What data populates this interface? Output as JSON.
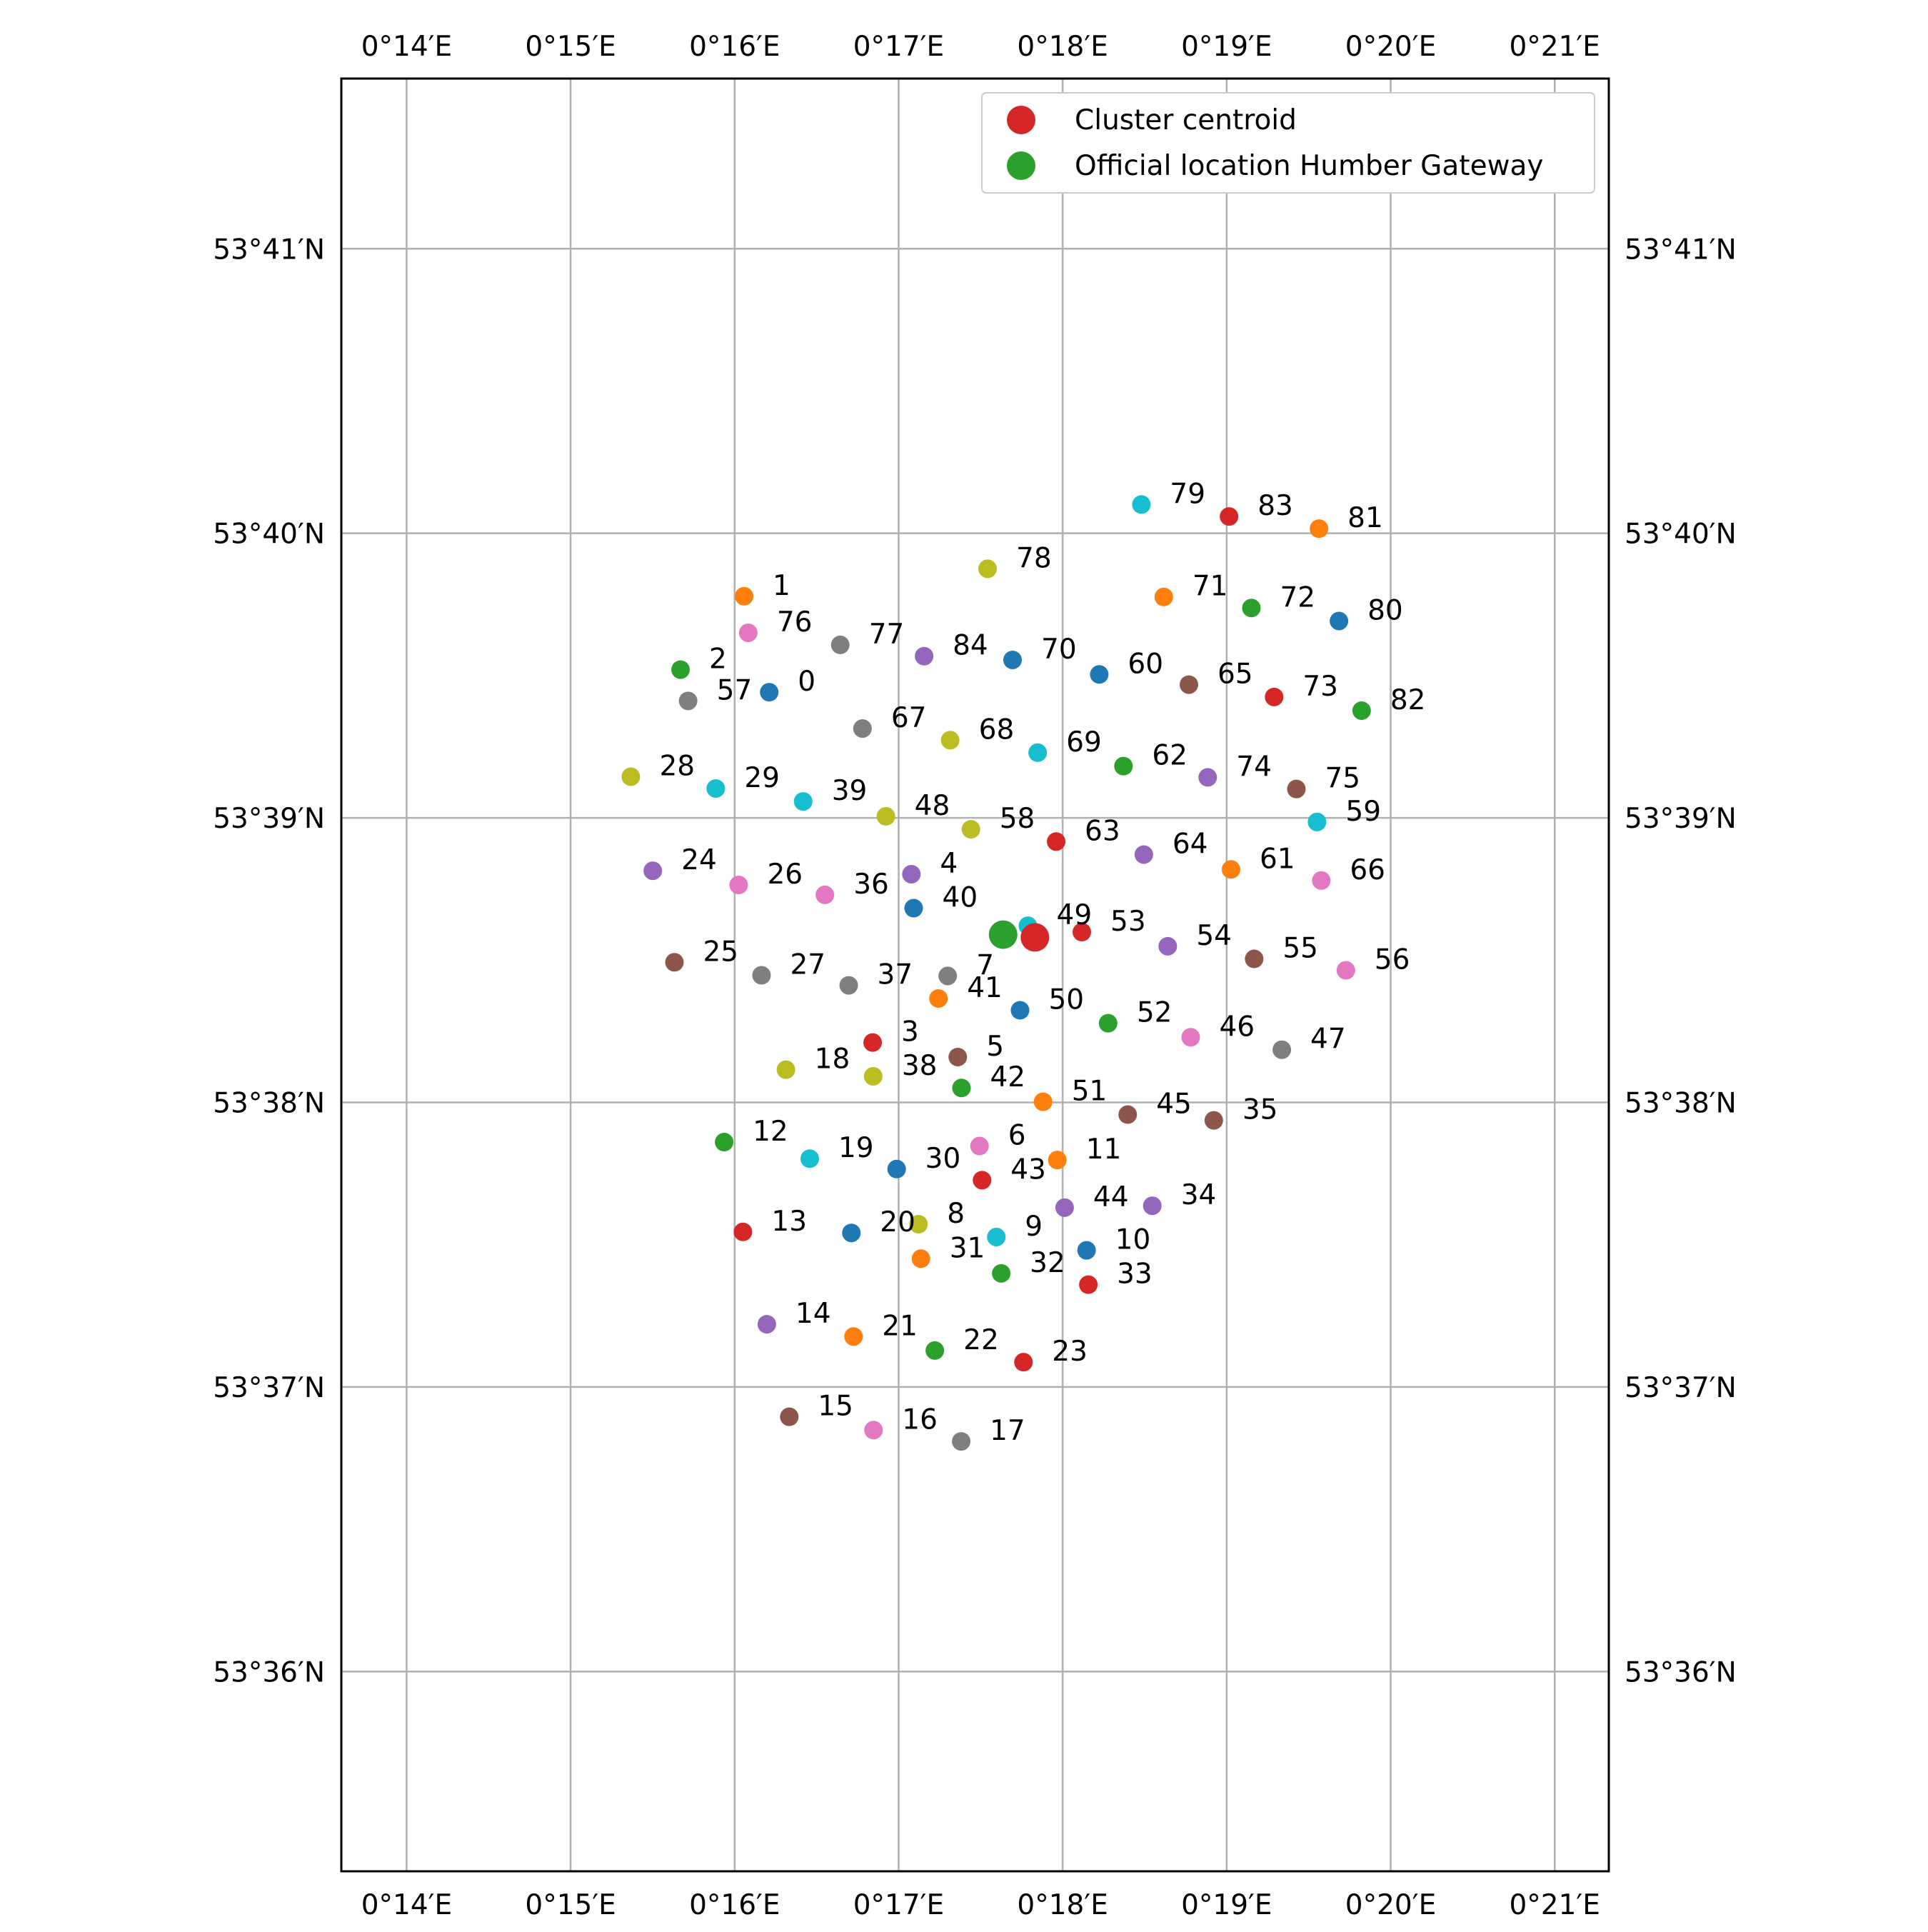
{
  "chart_data": {
    "type": "scatter",
    "title": "",
    "xlabel": "",
    "ylabel": "",
    "xlim": [
      0.2267,
      0.3555
    ],
    "ylim": [
      53.5883,
      53.6933
    ],
    "x_ticks": [
      {
        "value": 0.233333,
        "label": "0°14′E"
      },
      {
        "value": 0.25,
        "label": "0°15′E"
      },
      {
        "value": 0.266667,
        "label": "0°16′E"
      },
      {
        "value": 0.283333,
        "label": "0°17′E"
      },
      {
        "value": 0.3,
        "label": "0°18′E"
      },
      {
        "value": 0.316667,
        "label": "0°19′E"
      },
      {
        "value": 0.333333,
        "label": "0°20′E"
      },
      {
        "value": 0.35,
        "label": "0°21′E"
      }
    ],
    "y_ticks": [
      {
        "value": 53.6,
        "label": "53°36′N"
      },
      {
        "value": 53.616667,
        "label": "53°37′N"
      },
      {
        "value": 53.633333,
        "label": "53°38′N"
      },
      {
        "value": 53.65,
        "label": "53°39′N"
      },
      {
        "value": 53.666667,
        "label": "53°40′N"
      },
      {
        "value": 53.683333,
        "label": "53°41′N"
      }
    ],
    "grid": true,
    "legend": {
      "placement": "top-right",
      "entries": [
        {
          "label": "Cluster centroid",
          "color": "#d62728"
        },
        {
          "label": "Official location Humber Gateway",
          "color": "#2ca02c"
        }
      ]
    },
    "palette": [
      "#1f77b4",
      "#ff7f0e",
      "#2ca02c",
      "#d62728",
      "#9467bd",
      "#8c564b",
      "#e377c2",
      "#7f7f7f",
      "#bcbd22",
      "#17becf"
    ],
    "points": [
      {
        "label": "0",
        "x": 0.27018,
        "y": 53.65736
      },
      {
        "label": "1",
        "x": 0.26763,
        "y": 53.66298
      },
      {
        "label": "2",
        "x": 0.26117,
        "y": 53.65868
      },
      {
        "label": "3",
        "x": 0.28069,
        "y": 53.63684
      },
      {
        "label": "4",
        "x": 0.28463,
        "y": 53.6467
      },
      {
        "label": "5",
        "x": 0.28934,
        "y": 53.63599
      },
      {
        "label": "6",
        "x": 0.29155,
        "y": 53.63078
      },
      {
        "label": "7",
        "x": 0.28832,
        "y": 53.64074
      },
      {
        "label": "8",
        "x": 0.28535,
        "y": 53.6262
      },
      {
        "label": "9",
        "x": 0.29326,
        "y": 53.62545
      },
      {
        "label": "10",
        "x": 0.30243,
        "y": 53.62467
      },
      {
        "label": "11",
        "x": 0.29946,
        "y": 53.62996
      },
      {
        "label": "12",
        "x": 0.2656,
        "y": 53.63101
      },
      {
        "label": "13",
        "x": 0.26751,
        "y": 53.62575
      },
      {
        "label": "14",
        "x": 0.26994,
        "y": 53.62034
      },
      {
        "label": "15",
        "x": 0.27222,
        "y": 53.61492
      },
      {
        "label": "16",
        "x": 0.28078,
        "y": 53.61414
      },
      {
        "label": "17",
        "x": 0.28969,
        "y": 53.61348
      },
      {
        "label": "18",
        "x": 0.27188,
        "y": 53.63525
      },
      {
        "label": "19",
        "x": 0.2743,
        "y": 53.63004
      },
      {
        "label": "20",
        "x": 0.27853,
        "y": 53.62569
      },
      {
        "label": "21",
        "x": 0.27875,
        "y": 53.61962
      },
      {
        "label": "22",
        "x": 0.28701,
        "y": 53.6188
      },
      {
        "label": "23",
        "x": 0.29602,
        "y": 53.61812
      },
      {
        "label": "24",
        "x": 0.25835,
        "y": 53.6469
      },
      {
        "label": "25",
        "x": 0.26055,
        "y": 53.64154
      },
      {
        "label": "26",
        "x": 0.26708,
        "y": 53.64607
      },
      {
        "label": "27",
        "x": 0.2694,
        "y": 53.64078
      },
      {
        "label": "28",
        "x": 0.25612,
        "y": 53.65241
      },
      {
        "label": "29",
        "x": 0.26475,
        "y": 53.65172
      },
      {
        "label": "30",
        "x": 0.28313,
        "y": 53.62943
      },
      {
        "label": "31",
        "x": 0.2856,
        "y": 53.62418
      },
      {
        "label": "32",
        "x": 0.29376,
        "y": 53.62332
      },
      {
        "label": "33",
        "x": 0.30261,
        "y": 53.62266
      },
      {
        "label": "34",
        "x": 0.30911,
        "y": 53.62728
      },
      {
        "label": "35",
        "x": 0.31536,
        "y": 53.63228
      },
      {
        "label": "36",
        "x": 0.27584,
        "y": 53.64549
      },
      {
        "label": "37",
        "x": 0.27826,
        "y": 53.64019
      },
      {
        "label": "38",
        "x": 0.28075,
        "y": 53.63486
      },
      {
        "label": "39",
        "x": 0.27363,
        "y": 53.65096
      },
      {
        "label": "40",
        "x": 0.28486,
        "y": 53.64471
      },
      {
        "label": "41",
        "x": 0.28738,
        "y": 53.63942
      },
      {
        "label": "42",
        "x": 0.28972,
        "y": 53.63418
      },
      {
        "label": "43",
        "x": 0.29181,
        "y": 53.62878
      },
      {
        "label": "44",
        "x": 0.3002,
        "y": 53.62717
      },
      {
        "label": "45",
        "x": 0.30661,
        "y": 53.63262
      },
      {
        "label": "46",
        "x": 0.31301,
        "y": 53.63715
      },
      {
        "label": "47",
        "x": 0.32227,
        "y": 53.63642
      },
      {
        "label": "48",
        "x": 0.28204,
        "y": 53.65009
      },
      {
        "label": "49",
        "x": 0.29647,
        "y": 53.64368
      },
      {
        "label": "50",
        "x": 0.29567,
        "y": 53.63873
      },
      {
        "label": "51",
        "x": 0.29801,
        "y": 53.63337
      },
      {
        "label": "52",
        "x": 0.30462,
        "y": 53.63797
      },
      {
        "label": "53",
        "x": 0.30195,
        "y": 53.64331
      },
      {
        "label": "54",
        "x": 0.31068,
        "y": 53.64248
      },
      {
        "label": "55",
        "x": 0.31946,
        "y": 53.64174
      },
      {
        "label": "56",
        "x": 0.32878,
        "y": 53.64107
      },
      {
        "label": "57",
        "x": 0.26194,
        "y": 53.65685
      },
      {
        "label": "58",
        "x": 0.29068,
        "y": 53.64933
      },
      {
        "label": "59",
        "x": 0.32585,
        "y": 53.64976
      },
      {
        "label": "60",
        "x": 0.30372,
        "y": 53.6584
      },
      {
        "label": "61",
        "x": 0.31711,
        "y": 53.64698
      },
      {
        "label": "62",
        "x": 0.30618,
        "y": 53.65303
      },
      {
        "label": "63",
        "x": 0.29934,
        "y": 53.64861
      },
      {
        "label": "64",
        "x": 0.30825,
        "y": 53.64785
      },
      {
        "label": "65",
        "x": 0.31283,
        "y": 53.6578
      },
      {
        "label": "66",
        "x": 0.32628,
        "y": 53.64633
      },
      {
        "label": "67",
        "x": 0.27966,
        "y": 53.65523
      },
      {
        "label": "68",
        "x": 0.28857,
        "y": 53.65455
      },
      {
        "label": "69",
        "x": 0.29746,
        "y": 53.65382
      },
      {
        "label": "70",
        "x": 0.29491,
        "y": 53.65925
      },
      {
        "label": "71",
        "x": 0.31028,
        "y": 53.66294
      },
      {
        "label": "72",
        "x": 0.31918,
        "y": 53.66229
      },
      {
        "label": "73",
        "x": 0.32149,
        "y": 53.65708
      },
      {
        "label": "74",
        "x": 0.31474,
        "y": 53.65237
      },
      {
        "label": "75",
        "x": 0.32375,
        "y": 53.65169
      },
      {
        "label": "76",
        "x": 0.26805,
        "y": 53.66084
      },
      {
        "label": "77",
        "x": 0.2774,
        "y": 53.66013
      },
      {
        "label": "78",
        "x": 0.29237,
        "y": 53.66459
      },
      {
        "label": "79",
        "x": 0.308,
        "y": 53.66835
      },
      {
        "label": "80",
        "x": 0.32808,
        "y": 53.66153
      },
      {
        "label": "81",
        "x": 0.32605,
        "y": 53.66694
      },
      {
        "label": "82",
        "x": 0.33038,
        "y": 53.65628
      },
      {
        "label": "83",
        "x": 0.31691,
        "y": 53.66765
      },
      {
        "label": "84",
        "x": 0.28592,
        "y": 53.65947
      }
    ],
    "centroid": {
      "x": 0.29718,
      "y": 53.643
    },
    "official_location": {
      "x": 0.29395,
      "y": 53.64316
    }
  }
}
